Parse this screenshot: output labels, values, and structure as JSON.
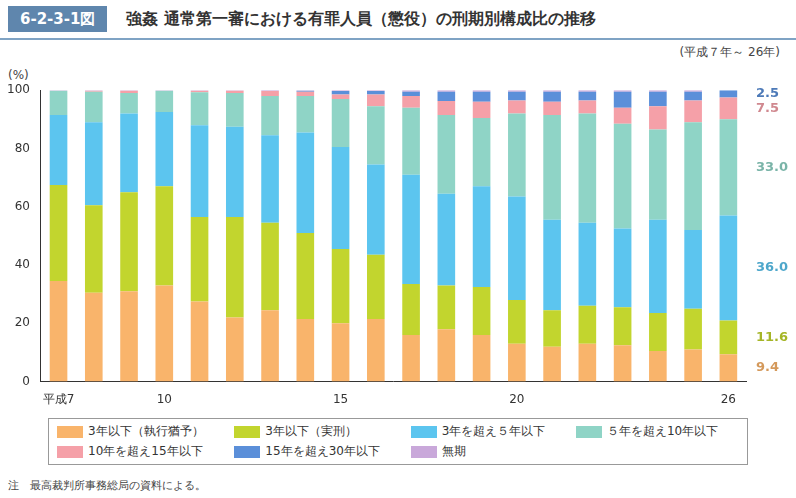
{
  "chart_data": {
    "type": "bar",
    "figure_number": "6-2-3-1図",
    "title": "強姦 通常第一審における有罪人員（懲役）の刑期別構成比の推移",
    "subtitle": "(平成７年～ 26年)",
    "y_label": "(%)",
    "note": "注　最高裁判所事務総局の資料による。",
    "stacked": true,
    "grid": false,
    "data_labels": true,
    "ylim": [
      0,
      100
    ],
    "yticks": [
      0,
      20,
      40,
      60,
      80,
      100
    ],
    "categories": [
      "平成7",
      null,
      null,
      "10",
      null,
      null,
      null,
      null,
      "15",
      null,
      null,
      null,
      null,
      "20",
      null,
      null,
      null,
      null,
      null,
      "26"
    ],
    "series": [
      {
        "name": "3年以下（執行猶予）",
        "color": "#f9b46b",
        "values": [
          34.5,
          30.5,
          31,
          33,
          27.5,
          22,
          24.5,
          21.5,
          20,
          21.5,
          16,
          18,
          16,
          13,
          12,
          13,
          12.5,
          10.5,
          11,
          9.4
        ],
        "value_labels": [
          null,
          null,
          null,
          null,
          null,
          null,
          null,
          null,
          null,
          null,
          null,
          null,
          null,
          null,
          null,
          null,
          null,
          null,
          null,
          "9.4"
        ]
      },
      {
        "name": "3年以下（実刑）",
        "color": "#c2d52e",
        "values": [
          33,
          30,
          34,
          34,
          29,
          34.5,
          30,
          29.5,
          25.5,
          22,
          17.5,
          15,
          16.5,
          15,
          12.5,
          13,
          13,
          13,
          14,
          11.6
        ],
        "value_labels": [
          null,
          null,
          null,
          null,
          null,
          null,
          null,
          null,
          null,
          null,
          null,
          null,
          null,
          null,
          null,
          null,
          null,
          null,
          null,
          "11.6"
        ]
      },
      {
        "name": "3年を超え５年以下",
        "color": "#5cc5ef",
        "values": [
          24,
          28.5,
          27,
          25.5,
          31.5,
          31,
          30,
          34.5,
          35,
          31,
          37.5,
          31.5,
          34.5,
          35.5,
          31,
          28.5,
          27,
          32,
          27,
          36
        ],
        "value_labels": [
          null,
          null,
          null,
          null,
          null,
          null,
          null,
          null,
          null,
          null,
          null,
          null,
          null,
          null,
          null,
          null,
          null,
          null,
          null,
          "36.0"
        ]
      },
      {
        "name": "５年を超え10年以下",
        "color": "#8fd4c6",
        "values": [
          8.3,
          10.5,
          7,
          7.3,
          11.3,
          11.5,
          13.5,
          12.5,
          16.5,
          20,
          23,
          27,
          23.5,
          28.5,
          36,
          37.5,
          36,
          31,
          37,
          33
        ],
        "value_labels": [
          null,
          null,
          null,
          null,
          null,
          null,
          null,
          null,
          null,
          null,
          null,
          null,
          null,
          null,
          null,
          null,
          null,
          null,
          null,
          "33.0"
        ]
      },
      {
        "name": "10年を超え15年以下",
        "color": "#f5a0a8",
        "values": [
          0,
          0.3,
          0.8,
          0,
          0.5,
          0.8,
          1.7,
          1.5,
          1.5,
          4,
          4,
          4.8,
          5.5,
          4.5,
          4.5,
          4.5,
          5.5,
          8,
          7.5,
          7.5
        ],
        "value_labels": [
          null,
          null,
          null,
          null,
          null,
          null,
          null,
          null,
          null,
          null,
          null,
          null,
          null,
          null,
          null,
          null,
          null,
          null,
          null,
          "7.5"
        ]
      },
      {
        "name": "15年を超え30年以下",
        "color": "#5b8fd9",
        "values": [
          0,
          0,
          0,
          0,
          0,
          0,
          0,
          0.3,
          1.2,
          1.2,
          1.5,
          3.2,
          3.5,
          3,
          3.5,
          3,
          5.5,
          5,
          3,
          2.5
        ],
        "value_labels": [
          null,
          null,
          null,
          null,
          null,
          null,
          null,
          null,
          null,
          null,
          null,
          null,
          null,
          null,
          null,
          null,
          null,
          null,
          null,
          "2.5"
        ]
      },
      {
        "name": "無期",
        "color": "#c9a8da",
        "values": [
          0.2,
          0.2,
          0.2,
          0.2,
          0.2,
          0.2,
          0.3,
          0.2,
          0.3,
          0.3,
          0.5,
          0.5,
          0.5,
          0.5,
          0.5,
          0.5,
          0.5,
          0.5,
          0.5,
          0
        ]
      }
    ]
  }
}
